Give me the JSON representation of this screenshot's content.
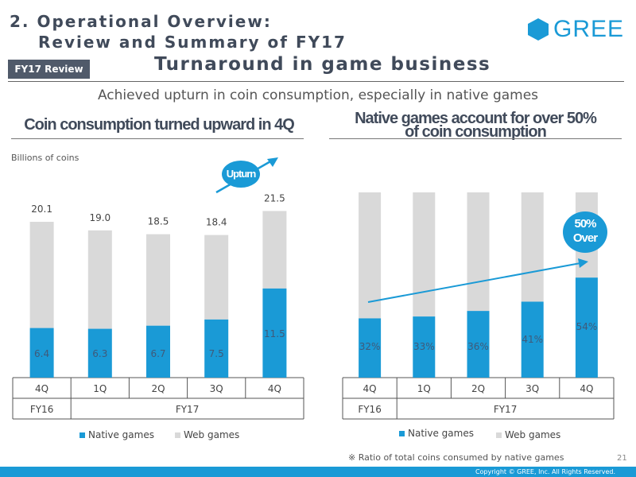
{
  "header": {
    "title_line1": "2. Operational Overview:",
    "title_line2": "Review and Summary of FY17",
    "logo_text": "GREE",
    "tag": "FY17 Review",
    "headline": "Turnaround in game business",
    "subtitle": "Achieved upturn in coin consumption, especially in native games"
  },
  "colors": {
    "native": "#1a9ad6",
    "web": "#d9d9d9",
    "accent": "#1a9ad6",
    "title": "#404a5a"
  },
  "left_panel": {
    "title": "Coin consumption turned upward in 4Q",
    "unit_label": "Billions of coins",
    "callout": "Upturn",
    "legend_native": "Native games",
    "legend_web": "Web games",
    "year_labels": [
      "FY16",
      "FY17"
    ]
  },
  "right_panel": {
    "title_line1": "Native games account for over 50%",
    "title_line2": "of coin consumption",
    "callout_line1": "50%",
    "callout_line2": "Over",
    "legend_native": "Native games",
    "legend_web": "Web games",
    "year_labels": [
      "FY16",
      "FY17"
    ],
    "footnote": "※ Ratio of total coins consumed by native games"
  },
  "chart_data": [
    {
      "type": "bar",
      "stacked": true,
      "title": "Coin consumption turned upward in 4Q",
      "ylabel": "Billions of coins",
      "categories": [
        "4Q",
        "1Q",
        "2Q",
        "3Q",
        "4Q"
      ],
      "totals": [
        20.1,
        19.0,
        18.5,
        18.4,
        21.5
      ],
      "total_labels": [
        "20.1",
        "19.0",
        "18.5",
        "18.4",
        "21.5"
      ],
      "native_labels": [
        "6.4",
        "6.3",
        "6.7",
        "7.5",
        "11.5"
      ],
      "series": [
        {
          "name": "Native games",
          "values": [
            6.4,
            6.3,
            6.7,
            7.5,
            11.5
          ]
        },
        {
          "name": "Web games",
          "values": [
            13.7,
            12.7,
            11.8,
            10.9,
            10.0
          ]
        }
      ],
      "ylim": [
        0,
        25
      ]
    },
    {
      "type": "bar",
      "stacked": true,
      "percent": true,
      "title": "Native games account for over 50% of coin consumption",
      "categories": [
        "4Q",
        "1Q",
        "2Q",
        "3Q",
        "4Q"
      ],
      "native_labels": [
        "32%",
        "33%",
        "36%",
        "41%",
        "54%"
      ],
      "series": [
        {
          "name": "Native games",
          "values": [
            32,
            33,
            36,
            41,
            54
          ]
        },
        {
          "name": "Web games",
          "values": [
            68,
            67,
            64,
            59,
            46
          ]
        }
      ],
      "ylim": [
        0,
        100
      ]
    }
  ],
  "footer": {
    "page_number": "21",
    "copyright": "Copyright © GREE, Inc. All Rights Reserved."
  }
}
